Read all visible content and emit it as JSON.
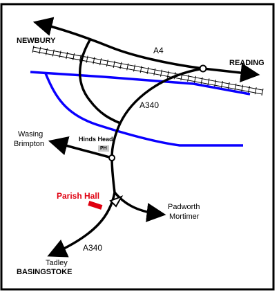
{
  "map": {
    "places": {
      "newbury": "NEWBURY",
      "reading": "READING",
      "wasing": "Wasing",
      "brimpton": "Brimpton",
      "padworth": "Padworth",
      "mortimer": "Mortimer",
      "tadley": "Tadley",
      "basingstoke": "BASINGSTOKE"
    },
    "roads": {
      "a4": "A4",
      "a340_north": "A340",
      "a340_south": "A340"
    },
    "pub": {
      "name": "Hinds Head",
      "marker": "PH"
    },
    "landmark": "Parish Hall",
    "colors": {
      "road": "#000000",
      "river": "#0a00ff",
      "landmark": "#e00010",
      "pub_marker": "#c8c8c8",
      "railway": "#000000"
    }
  }
}
